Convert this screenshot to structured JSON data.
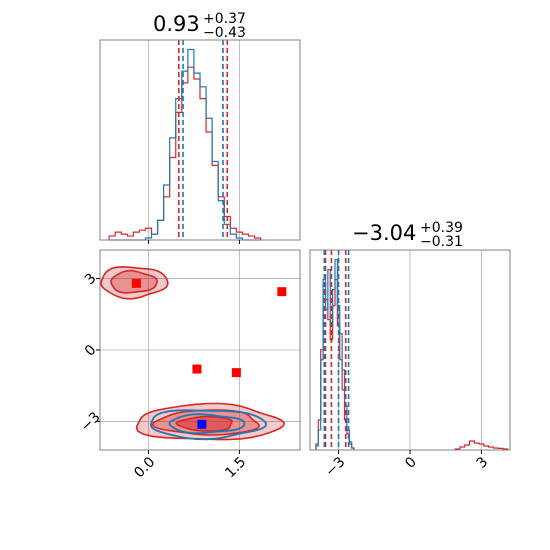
{
  "chart_data": {
    "type": "corner",
    "colors": {
      "blue": "#1f77b4",
      "red": "#d62728",
      "marker_red": "#ff0000",
      "marker_blue": "#0000ff",
      "grid": "#b0b0b0"
    },
    "series": [
      {
        "name": "",
        "color": "#1f77b4"
      },
      {
        "name": "",
        "color": "#d62728"
      }
    ],
    "parameters": [
      {
        "title": {
          "value": "0.93",
          "sup": "+0.37",
          "sub": "−0.43"
        },
        "range": [
          -0.8,
          2.5
        ],
        "ticks": [
          0.0,
          1.5
        ],
        "tick_labels": [
          "0.0",
          "1.5"
        ],
        "quantiles_blue": [
          0.57,
          1.23
        ],
        "quantiles_red": [
          0.5,
          1.3
        ],
        "hist_centers": [
          -0.6,
          -0.5,
          -0.4,
          -0.3,
          -0.2,
          -0.1,
          0.0,
          0.1,
          0.2,
          0.3,
          0.4,
          0.5,
          0.6,
          0.7,
          0.8,
          0.9,
          1.0,
          1.1,
          1.2,
          1.3,
          1.4,
          1.5,
          1.6,
          1.7,
          1.8
        ],
        "hist_blue": [
          0,
          0,
          0,
          0,
          0,
          0,
          0.01,
          0.03,
          0.1,
          0.28,
          0.52,
          0.72,
          0.86,
          0.97,
          0.85,
          0.78,
          0.62,
          0.4,
          0.2,
          0.08,
          0.03,
          0.01,
          0,
          0,
          0
        ],
        "hist_red": [
          0.02,
          0.04,
          0.03,
          0.02,
          0.04,
          0.05,
          0.06,
          0.03,
          0.1,
          0.22,
          0.42,
          0.65,
          0.8,
          0.88,
          0.82,
          0.72,
          0.55,
          0.38,
          0.22,
          0.12,
          0.06,
          0.04,
          0.03,
          0.02,
          0.01
        ]
      },
      {
        "title": {
          "value": "−3.04",
          "sup": "+0.39",
          "sub": "−0.31"
        },
        "range": [
          -4.2,
          4.2
        ],
        "ticks": [
          -3,
          0,
          3
        ],
        "tick_labels": [
          "−3",
          "0",
          "3"
        ],
        "quantiles_blue": [
          -3.6,
          -3.0,
          -2.58
        ],
        "quantiles_red": [
          -3.55,
          -3.3,
          -2.7
        ],
        "hist_centers": [
          -3.9,
          -3.8,
          -3.7,
          -3.6,
          -3.5,
          -3.4,
          -3.3,
          -3.2,
          -3.1,
          -3.0,
          -2.9,
          -2.8,
          -2.7,
          -2.6,
          -2.5,
          -2.4
        ],
        "hist_blue": [
          0.02,
          0.1,
          0.45,
          0.85,
          0.7,
          0.9,
          0.62,
          0.8,
          0.95,
          0.72,
          0.58,
          0.4,
          0.22,
          0.1,
          0.04,
          0.01
        ],
        "hist_red": [
          0.03,
          0.15,
          0.5,
          0.8,
          0.75,
          0.65,
          0.55,
          0.72,
          0.85,
          0.62,
          0.45,
          0.3,
          0.15,
          0.08,
          0.03,
          0.01
        ],
        "red_bump": {
          "x": [
            2.0,
            2.2,
            2.4,
            2.6,
            2.8,
            3.0,
            3.2,
            3.4,
            3.6,
            3.8,
            4.0
          ],
          "y": [
            0.005,
            0.015,
            0.025,
            0.045,
            0.035,
            0.03,
            0.02,
            0.015,
            0.01,
            0.008,
            0.005
          ]
        }
      }
    ],
    "scatter_markers": [
      {
        "x": -0.2,
        "y": 2.8,
        "color": "#ff0000"
      },
      {
        "x": 2.2,
        "y": 2.45,
        "color": "#ff0000"
      },
      {
        "x": 0.8,
        "y": -0.8,
        "color": "#ff0000"
      },
      {
        "x": 1.45,
        "y": -0.95,
        "color": "#ff0000"
      },
      {
        "x": 0.88,
        "y": -3.12,
        "color": "#0000ff"
      }
    ],
    "contours_red": [
      {
        "cx": -0.25,
        "cy": 2.85,
        "rx": 0.55,
        "ry": 0.65,
        "alpha": 0.25
      },
      {
        "cx": -0.25,
        "cy": 2.85,
        "rx": 0.38,
        "ry": 0.45,
        "alpha": 0.35
      },
      {
        "cx": 0.98,
        "cy": -3.05,
        "rx": 1.2,
        "ry": 0.75,
        "alpha": 0.25
      },
      {
        "cx": 0.98,
        "cy": -3.05,
        "rx": 0.85,
        "ry": 0.52,
        "alpha": 0.35
      },
      {
        "cx": 0.95,
        "cy": -3.1,
        "rx": 0.45,
        "ry": 0.3,
        "alpha": 0.5
      }
    ],
    "contours_blue": [
      {
        "cx": 0.95,
        "cy": -3.1,
        "rx": 0.95,
        "ry": 0.6
      },
      {
        "cx": 0.95,
        "cy": -3.1,
        "rx": 0.62,
        "ry": 0.38
      }
    ],
    "grid": true
  }
}
